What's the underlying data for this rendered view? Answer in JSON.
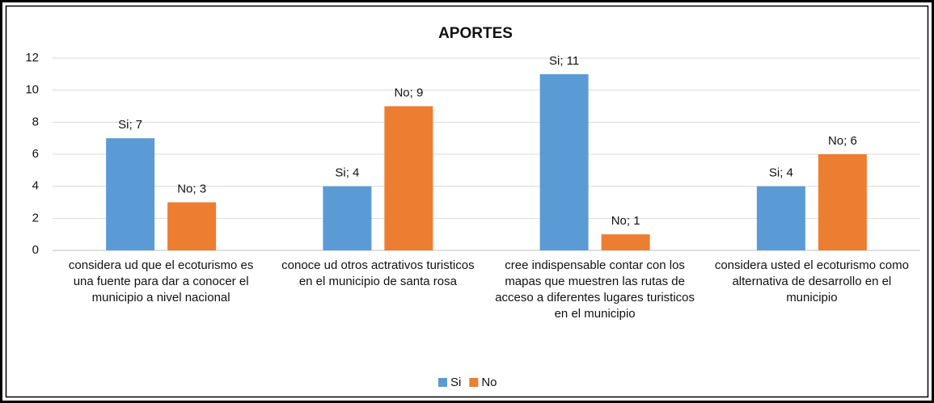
{
  "chart_data": {
    "type": "bar",
    "title": "APORTES",
    "categories": [
      "considera ud que el ecoturismo es una fuente para dar a conocer el municipio a nivel nacional",
      "conoce ud otros actrativos turisticos en el municipio de santa rosa",
      "cree indispensable contar con los mapas que muestren las rutas de acceso a diferentes lugares turisticos en el municipio",
      "considera usted el ecoturismo como alternativa de desarrollo en el municipio"
    ],
    "series": [
      {
        "name": "Si",
        "color": "#5b9bd5",
        "values": [
          7,
          4,
          11,
          4
        ],
        "value_labels": [
          "Si; 7",
          "Si; 4",
          "Si; 11",
          "Si; 4"
        ]
      },
      {
        "name": "No",
        "color": "#ed7d31",
        "values": [
          3,
          9,
          1,
          6
        ],
        "value_labels": [
          "No; 3",
          "No; 9",
          "No; 1",
          "No; 6"
        ]
      }
    ],
    "ylim": [
      0,
      12
    ],
    "yticks": [
      0,
      2,
      4,
      6,
      8,
      10,
      12
    ],
    "grid": true,
    "legend": "bottom"
  }
}
